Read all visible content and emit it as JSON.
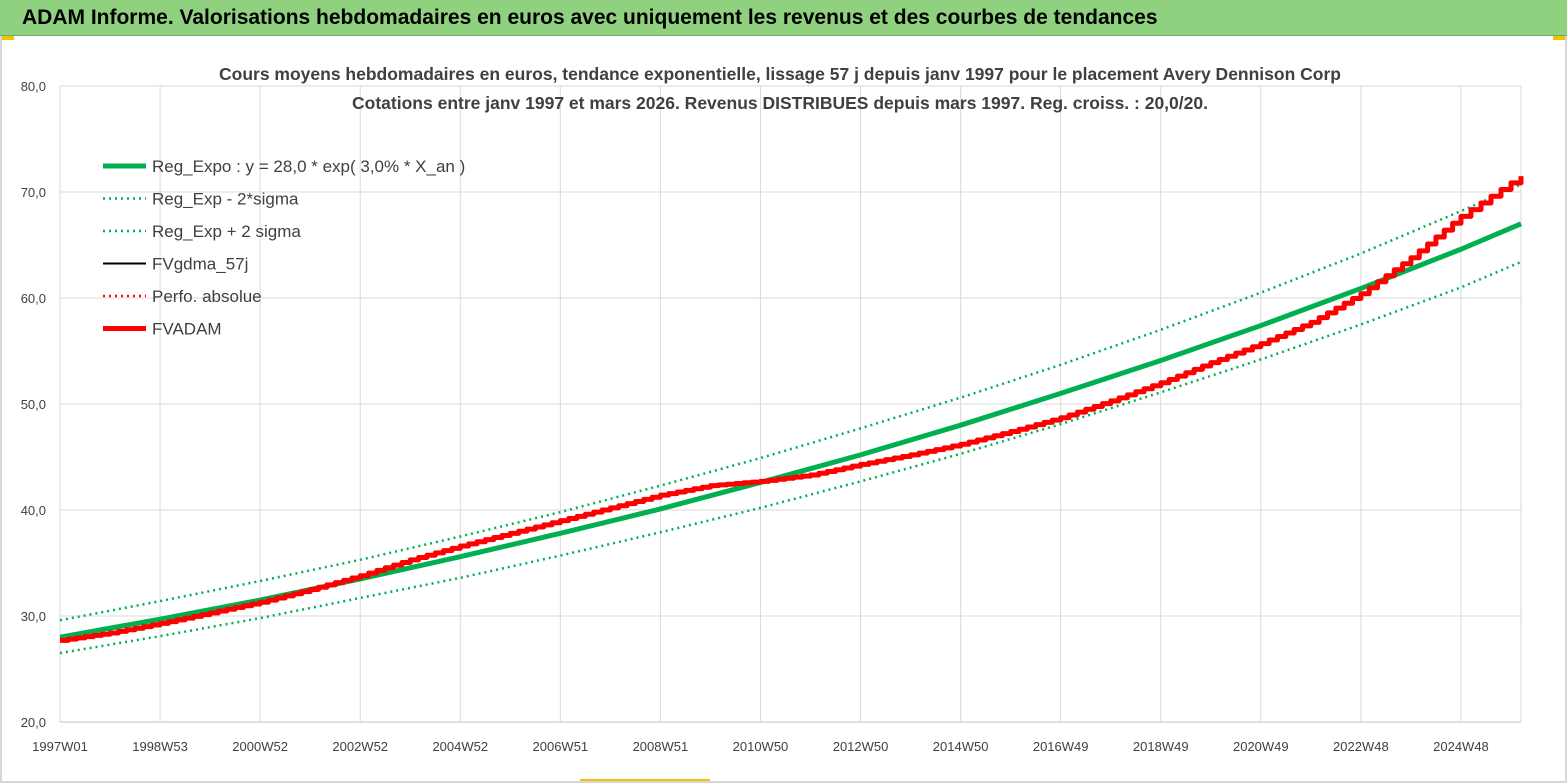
{
  "banner": {
    "title": "ADAM Informe. Valorisations hebdomadaires en euros avec uniquement les revenus et des courbes de tendances"
  },
  "colors": {
    "banner_bg": "#8fd17f",
    "trend_green": "#00b050",
    "adam_red": "#ff0000",
    "grid": "#d9d9d9",
    "accent": "#f2c200"
  },
  "chart_data": {
    "type": "line",
    "title": "Cours moyens hebdomadaires en euros, tendance exponentielle, lissage 57 j depuis janv 1997 pour le  placement Avery Dennison Corp",
    "subtitle": "Cotations entre janv 1997 et mars 2026. Revenus DISTRIBUES depuis mars 1997. Reg. croiss. : 20,0/20.",
    "xlabel": "",
    "ylabel": "",
    "x_range": [
      1997.0,
      2026.2
    ],
    "ylim": [
      20,
      80
    ],
    "y_ticks": [
      "20,0",
      "30,0",
      "40,0",
      "50,0",
      "60,0",
      "70,0",
      "80,0"
    ],
    "y_tick_values": [
      20,
      30,
      40,
      50,
      60,
      70,
      80
    ],
    "x_ticks": [
      {
        "label": "1997W01",
        "x": 1997.0
      },
      {
        "label": "1998W53",
        "x": 1999.0
      },
      {
        "label": "2000W52",
        "x": 2001.0
      },
      {
        "label": "2002W52",
        "x": 2003.0
      },
      {
        "label": "2004W52",
        "x": 2005.0
      },
      {
        "label": "2006W51",
        "x": 2007.0
      },
      {
        "label": "2008W51",
        "x": 2009.0
      },
      {
        "label": "2010W50",
        "x": 2011.0
      },
      {
        "label": "2012W50",
        "x": 2013.0
      },
      {
        "label": "2014W50",
        "x": 2015.0
      },
      {
        "label": "2016W49",
        "x": 2017.0
      },
      {
        "label": "2018W49",
        "x": 2019.0
      },
      {
        "label": "2020W49",
        "x": 2021.0
      },
      {
        "label": "2022W48",
        "x": 2023.0
      },
      {
        "label": "2024W48",
        "x": 2025.0
      }
    ],
    "grid": true,
    "legend_position": "top-left",
    "series": [
      {
        "name": "Reg_Expo : y = 28,0 * exp( 3,0% *  X_an )",
        "style": "solid-thick",
        "color": "#00b050",
        "x": [
          1997,
          1999,
          2001,
          2003,
          2005,
          2007,
          2009,
          2011,
          2013,
          2015,
          2017,
          2019,
          2021,
          2023,
          2025,
          2026.2
        ],
        "values": [
          28.0,
          29.7,
          31.5,
          33.5,
          35.6,
          37.8,
          40.1,
          42.6,
          45.2,
          48.0,
          51.0,
          54.1,
          57.4,
          60.9,
          64.6,
          67.0
        ]
      },
      {
        "name": "Reg_Exp - 2*sigma",
        "style": "dotted",
        "color": "#00b050",
        "x": [
          1997,
          1999,
          2001,
          2003,
          2005,
          2007,
          2009,
          2011,
          2013,
          2015,
          2017,
          2019,
          2021,
          2023,
          2025,
          2026.2
        ],
        "values": [
          26.5,
          28.1,
          29.8,
          31.7,
          33.6,
          35.7,
          37.9,
          40.2,
          42.7,
          45.3,
          48.1,
          51.1,
          54.2,
          57.5,
          61.0,
          63.4
        ]
      },
      {
        "name": "Reg_Exp + 2 sigma",
        "style": "dotted",
        "color": "#00b050",
        "x": [
          1997,
          1999,
          2001,
          2003,
          2005,
          2007,
          2009,
          2011,
          2013,
          2015,
          2017,
          2019,
          2021,
          2023,
          2025,
          2026.2
        ],
        "values": [
          29.6,
          31.4,
          33.3,
          35.3,
          37.5,
          39.8,
          42.3,
          44.9,
          47.7,
          50.6,
          53.7,
          57.0,
          60.5,
          64.2,
          68.2,
          70.7
        ]
      },
      {
        "name": "FVgdma_57j",
        "style": "solid",
        "color": "#000000",
        "x": [],
        "values": []
      },
      {
        "name": "Perfo. absolue",
        "style": "dotted",
        "color": "#ff0000",
        "x": [],
        "values": []
      },
      {
        "name": "FVADAM",
        "style": "solid-thick",
        "color": "#ff0000",
        "x": [
          1997,
          1998,
          1999,
          2000,
          2001,
          2002,
          2003,
          2004,
          2005,
          2006,
          2007,
          2008,
          2009,
          2010,
          2011,
          2012,
          2013,
          2014,
          2015,
          2016,
          2017,
          2018,
          2019,
          2020,
          2021,
          2022,
          2023,
          2024,
          2025,
          2026.2
        ],
        "values": [
          27.7,
          28.4,
          29.3,
          30.3,
          31.3,
          32.5,
          33.8,
          35.3,
          36.6,
          37.8,
          39.0,
          40.2,
          41.4,
          42.3,
          42.7,
          43.3,
          44.3,
          45.2,
          46.2,
          47.4,
          48.7,
          50.3,
          52.0,
          53.9,
          55.7,
          57.7,
          60.4,
          63.8,
          67.7,
          71.5
        ]
      }
    ]
  }
}
